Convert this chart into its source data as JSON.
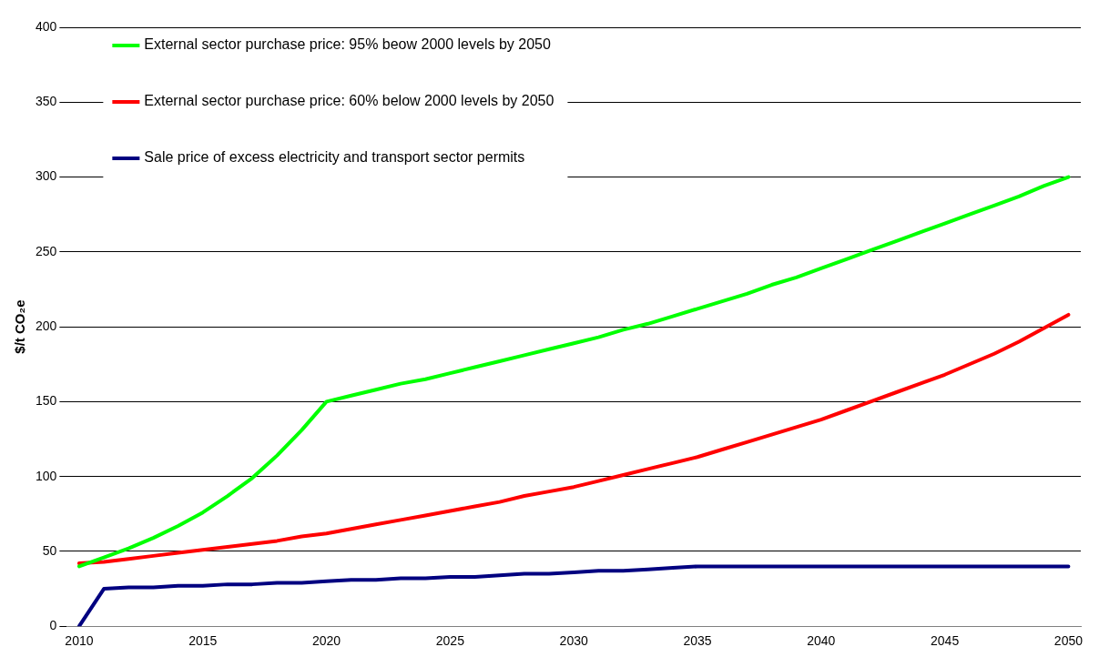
{
  "chart_data": {
    "type": "line",
    "ylabel": "$/t CO₂e",
    "categories": [
      "2010",
      null,
      null,
      null,
      null,
      "2015",
      null,
      null,
      null,
      null,
      "2020",
      null,
      null,
      null,
      null,
      "2025",
      null,
      null,
      null,
      null,
      "2030",
      null,
      null,
      null,
      null,
      "2035",
      null,
      null,
      null,
      null,
      "2040",
      null,
      null,
      null,
      null,
      "2045",
      null,
      null,
      null,
      null,
      "2050"
    ],
    "series": [
      {
        "name": "External sector purchase price: 95% beow 2000 levels by 2050",
        "color": "#00ff00",
        "values": [
          40,
          46,
          52,
          59,
          67,
          76,
          87,
          99,
          114,
          131,
          150,
          154,
          158,
          162,
          165,
          169,
          173,
          177,
          181,
          185,
          189,
          193,
          198,
          202,
          207,
          212,
          217,
          222,
          228,
          233,
          239,
          245,
          251,
          257,
          263,
          269,
          275,
          281,
          287,
          294,
          300
        ]
      },
      {
        "name": "External sector purchase price: 60% below 2000 levels by 2050",
        "color": "#ff0000",
        "values": [
          42,
          43,
          45,
          47,
          49,
          51,
          53,
          55,
          57,
          60,
          62,
          65,
          68,
          71,
          74,
          77,
          80,
          83,
          87,
          90,
          93,
          97,
          101,
          105,
          109,
          113,
          118,
          123,
          128,
          133,
          138,
          144,
          150,
          156,
          162,
          168,
          175,
          182,
          190,
          199,
          208
        ]
      },
      {
        "name": "Sale price of excess electricity and transport sector permits",
        "color": "#000080",
        "values": [
          0,
          25,
          26,
          26,
          27,
          27,
          28,
          28,
          29,
          29,
          30,
          31,
          31,
          32,
          32,
          33,
          33,
          34,
          35,
          35,
          36,
          37,
          37,
          38,
          39,
          40,
          40,
          40,
          40,
          40,
          40,
          40,
          40,
          40,
          40,
          40,
          40,
          40,
          40,
          40,
          40
        ]
      }
    ],
    "ylim": [
      0,
      400
    ],
    "yticks": [
      0,
      50,
      100,
      150,
      200,
      250,
      300,
      350,
      400
    ],
    "grid": "y",
    "legend": "top left",
    "marker": "none",
    "line_style": "solid"
  }
}
